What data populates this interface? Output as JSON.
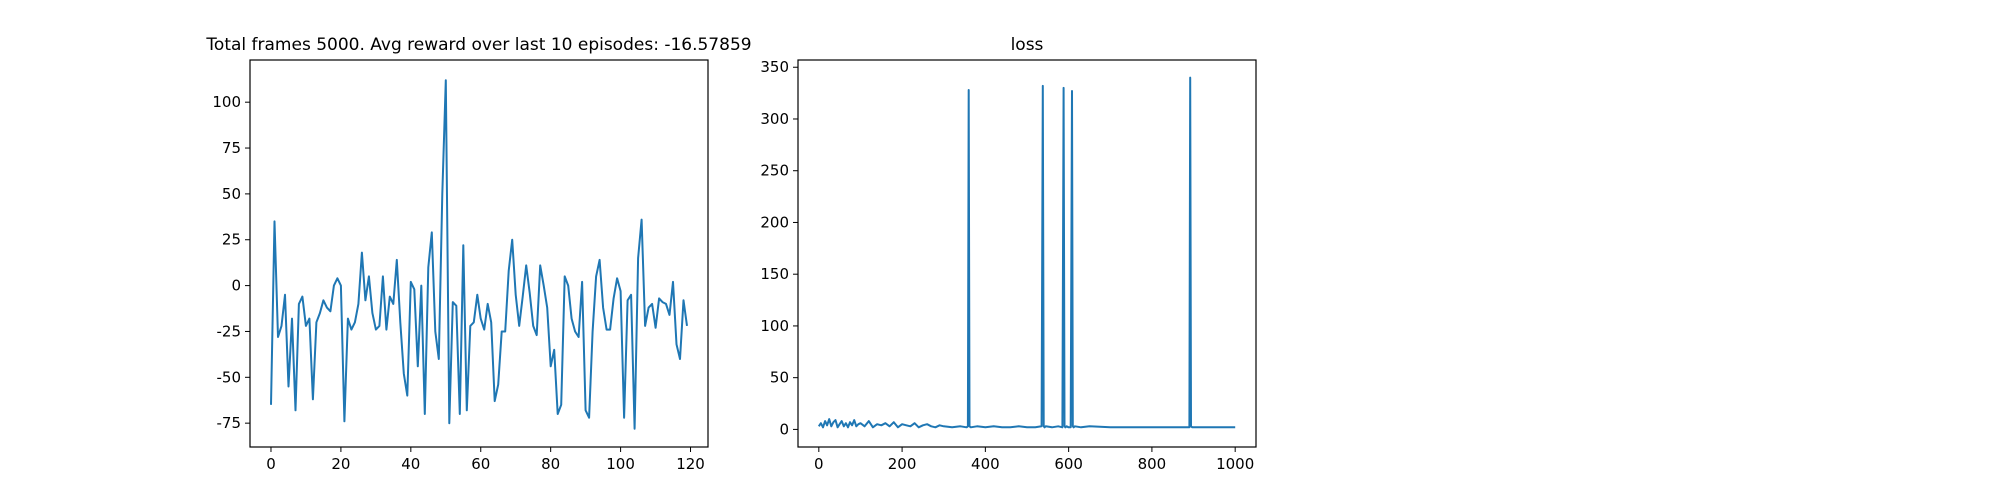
{
  "colors": {
    "line": "#1f77b4",
    "axes": "#000000",
    "background": "#ffffff"
  },
  "chart_data": [
    {
      "type": "line",
      "title": "Total frames 5000. Avg reward over last 10 episodes: -16.57859",
      "xlabel": "",
      "ylabel": "",
      "xlim": [
        -6,
        125
      ],
      "ylim": [
        -88,
        123
      ],
      "xticks": [
        0,
        20,
        40,
        60,
        80,
        100,
        120
      ],
      "yticks": [
        -75,
        -50,
        -25,
        0,
        25,
        50,
        75,
        100
      ],
      "grid": false,
      "series": [
        {
          "name": "reward",
          "x": [
            0,
            1,
            2,
            3,
            4,
            5,
            6,
            7,
            8,
            9,
            10,
            11,
            12,
            13,
            14,
            15,
            16,
            17,
            18,
            19,
            20,
            21,
            22,
            23,
            24,
            25,
            26,
            27,
            28,
            29,
            30,
            31,
            32,
            33,
            34,
            35,
            36,
            37,
            38,
            39,
            40,
            41,
            42,
            43,
            44,
            45,
            46,
            47,
            48,
            49,
            50,
            51,
            52,
            53,
            54,
            55,
            56,
            57,
            58,
            59,
            60,
            61,
            62,
            63,
            64,
            65,
            66,
            67,
            68,
            69,
            70,
            71,
            72,
            73,
            74,
            75,
            76,
            77,
            78,
            79,
            80,
            81,
            82,
            83,
            84,
            85,
            86,
            87,
            88,
            89,
            90,
            91,
            92,
            93,
            94,
            95,
            96,
            97,
            98,
            99,
            100,
            101,
            102,
            103,
            104,
            105,
            106,
            107,
            108,
            109,
            110,
            111,
            112,
            113,
            114,
            115,
            116,
            117,
            118,
            119
          ],
          "values": [
            -65,
            35,
            -28,
            -22,
            -5,
            -55,
            -18,
            -68,
            -10,
            -6,
            -22,
            -18,
            -62,
            -20,
            -15,
            -8,
            -12,
            -14,
            0,
            4,
            0,
            -74,
            -18,
            -24,
            -20,
            -10,
            18,
            -8,
            5,
            -15,
            -24,
            -22,
            5,
            -24,
            -6,
            -10,
            14,
            -20,
            -48,
            -60,
            2,
            -2,
            -44,
            0,
            -70,
            10,
            29,
            -25,
            -40,
            50,
            112,
            -75,
            -9,
            -11,
            -70,
            22,
            -68,
            -22,
            -20,
            -5,
            -18,
            -24,
            -10,
            -20,
            -63,
            -54,
            -25,
            -25,
            8,
            25,
            -5,
            -22,
            -6,
            11,
            -4,
            -22,
            -27,
            11,
            0,
            -12,
            -44,
            -35,
            -70,
            -65,
            5,
            0,
            -18,
            -25,
            -28,
            2,
            -68,
            -72,
            -25,
            5,
            14,
            -12,
            -24,
            -24,
            -7,
            4,
            -3,
            -72,
            -8,
            -5,
            -78,
            15,
            36,
            -22,
            -12,
            -10,
            -23,
            -7,
            -9,
            -10,
            -16,
            2,
            -32,
            -40,
            -8,
            -22
          ]
        }
      ]
    },
    {
      "type": "line",
      "title": "loss",
      "xlabel": "",
      "ylabel": "",
      "xlim": [
        -50,
        1050
      ],
      "ylim": [
        -17,
        357
      ],
      "xticks": [
        0,
        200,
        400,
        600,
        800,
        1000
      ],
      "yticks": [
        0,
        50,
        100,
        150,
        200,
        250,
        300,
        350
      ],
      "grid": false,
      "series": [
        {
          "name": "loss",
          "x": [
            0,
            5,
            10,
            15,
            20,
            25,
            30,
            35,
            40,
            45,
            50,
            55,
            60,
            65,
            70,
            75,
            80,
            85,
            90,
            95,
            100,
            110,
            120,
            130,
            140,
            150,
            160,
            170,
            180,
            190,
            200,
            210,
            220,
            230,
            240,
            250,
            260,
            270,
            280,
            290,
            300,
            320,
            340,
            355,
            358,
            360,
            362,
            365,
            380,
            400,
            420,
            440,
            460,
            480,
            500,
            520,
            535,
            538,
            540,
            542,
            545,
            560,
            575,
            585,
            588,
            590,
            592,
            595,
            600,
            605,
            608,
            610,
            612,
            615,
            630,
            650,
            700,
            750,
            800,
            850,
            880,
            890,
            892,
            894,
            897,
            910,
            950,
            1000
          ],
          "values": [
            3,
            6,
            2,
            8,
            4,
            10,
            3,
            7,
            9,
            2,
            5,
            8,
            3,
            6,
            2,
            7,
            4,
            9,
            3,
            5,
            6,
            3,
            8,
            2,
            5,
            4,
            6,
            3,
            7,
            2,
            5,
            4,
            3,
            6,
            2,
            4,
            5,
            3,
            2,
            4,
            3,
            2,
            3,
            2,
            3,
            328,
            3,
            2,
            3,
            2,
            3,
            2,
            2,
            3,
            2,
            2,
            3,
            332,
            3,
            2,
            3,
            2,
            3,
            2,
            330,
            3,
            2,
            3,
            2,
            2,
            327,
            3,
            2,
            3,
            2,
            3,
            2,
            2,
            2,
            2,
            2,
            2,
            340,
            3,
            2,
            2,
            2,
            2
          ]
        }
      ]
    }
  ]
}
